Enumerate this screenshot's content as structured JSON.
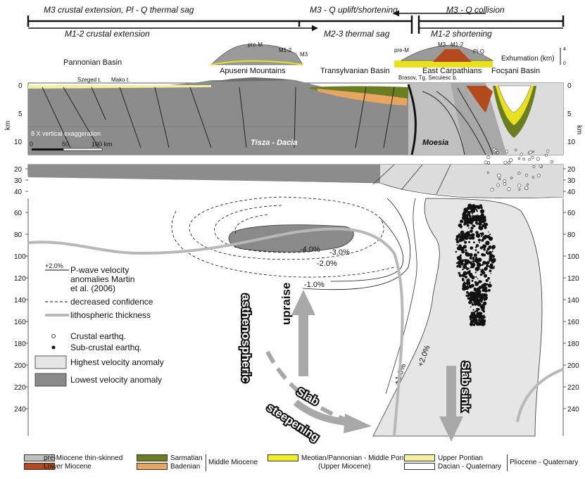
{
  "header": {
    "top_left": "M3 crustal extension, Pl - Q thermal sag",
    "top_mid": "M3 - Q uplift/shortening",
    "top_right": "M3 - Q collision",
    "bottom_left": "M1-2 crustal extension",
    "bottom_mid": "M2-3 thermal sag",
    "bottom_right": "M1-2 shortening"
  },
  "regions": {
    "pannonian": "Pannonian Basin",
    "apuseni": "Apuseni Mountains",
    "transylvanian": "Transylvanian Basin",
    "east_carp": "East Carpathians",
    "east_carp_sub": "Brasov, Tg. Secuiesc b.",
    "focsani": "Focşani Basin",
    "szeged": "Szeged t.",
    "mako": "Mako t.",
    "tisza": "Tisza - Dacia",
    "moesia": "Moesia",
    "exhumation": "Exhumation (km)",
    "exh_top": "4",
    "exh_bottom": "0",
    "inset_prem1": "pre-M",
    "inset_m12a": "M1-2",
    "inset_m3a": "M3",
    "inset_prem2": "pre-M",
    "inset_m3b": "M3",
    "inset_m12b": "M1-2",
    "inset_plq": "Pl-Q"
  },
  "section": {
    "vert_exag": "8 X vertical exaggeration",
    "scale": [
      "0",
      "50",
      "100 km"
    ],
    "km_label": "km",
    "upper_ticks": [
      "0",
      "5",
      "10"
    ],
    "lower_ticks": [
      "20",
      "30",
      "40",
      "60",
      "80",
      "100",
      "120",
      "140",
      "160",
      "180",
      "200",
      "220",
      "240"
    ]
  },
  "contours": [
    "-4.0%",
    "-3.0%",
    "-2.0%",
    "-1.0%",
    "+1.0%",
    "+2.0%"
  ],
  "annotations": {
    "uplift1": "asthenospheric",
    "uplift2": "upraise",
    "slab": "Slab",
    "steepening": "steepening",
    "slab_sink": "Slab sink"
  },
  "key": {
    "sample": "+2.0%",
    "pwave1": "P-wave velocity",
    "pwave2": "anomalies Martin",
    "pwave3": "et al. (2006)",
    "decreased": "decreased confidence",
    "litho": "lithospheric thickness",
    "crustal": "Crustal earthq.",
    "subcrustal": "Sub-crustal earthq.",
    "highest": "Highest velocity anomaly",
    "lowest": "Lowest velocity anomaly"
  },
  "legend": {
    "premiocene": "pre-Miocene thin-skinned",
    "lower_miocene": "Lower Miocene",
    "sarmatian": "Sarmatian",
    "badenian": "Badenian",
    "middle_miocene": "Middle Miocene",
    "meotian": "Meotian/Pannonian - Middle Pontian",
    "upper_miocene": "(Upper Miocene)",
    "upper_pontian": "Upper Pontian",
    "dacian": "Dacian - Quaternary",
    "plio_quat": "Pliocene - Quaternary"
  },
  "colors": {
    "basement": "#8c8c8c",
    "premiocene": "#c0c0c0",
    "lower_miocene": "#b34a1e",
    "sarmatian": "#6b7d22",
    "badenian": "#e8a560",
    "meotian": "#f0f020",
    "upper_pontian": "#f5f0a0",
    "dacian": "#ffffff",
    "high_anom": "#e6e6e6",
    "low_anom": "#8a8a8a",
    "litho": "#b8b8b8",
    "arrow": "#a8a8a8"
  }
}
